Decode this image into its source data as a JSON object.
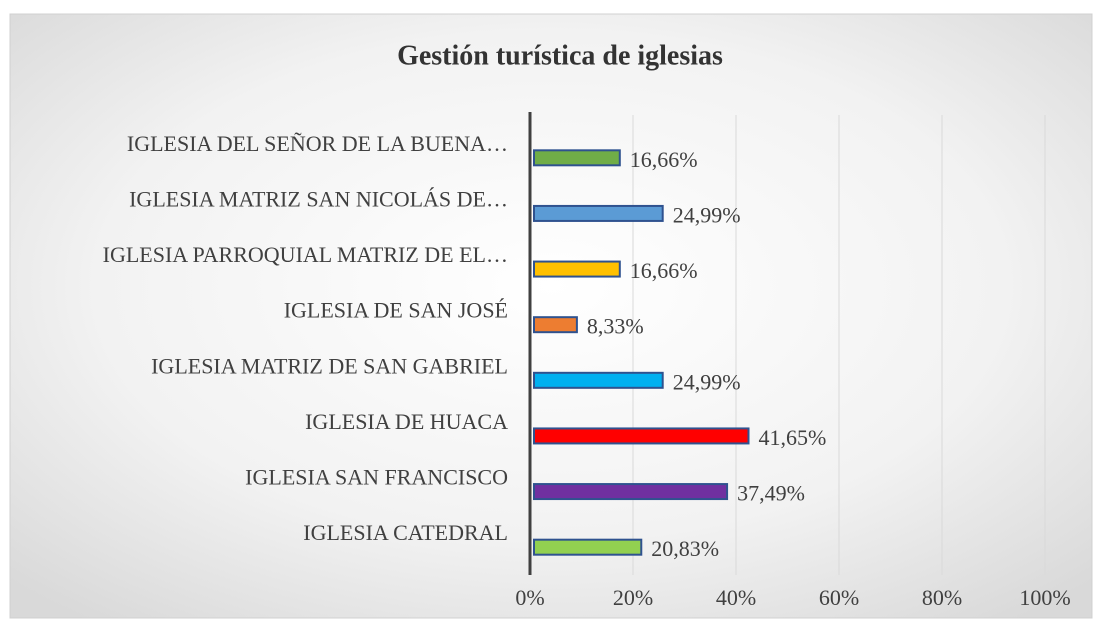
{
  "chart_data": {
    "type": "barh",
    "title": "Gestión turística de iglesias",
    "categories": [
      "IGLESIA DEL SEÑOR DE LA BUENA…",
      "IGLESIA MATRIZ SAN NICOLÁS DE…",
      "IGLESIA PARROQUIAL MATRIZ DE EL…",
      "IGLESIA DE SAN JOSÉ",
      "IGLESIA MATRIZ DE SAN GABRIEL",
      "IGLESIA DE HUACA",
      "IGLESIA SAN FRANCISCO",
      "IGLESIA CATEDRAL"
    ],
    "values": [
      16.66,
      24.99,
      16.66,
      8.33,
      24.99,
      41.65,
      37.49,
      20.83
    ],
    "value_labels": [
      "16,66%",
      "24,99%",
      "16,66%",
      "8,33%",
      "24,99%",
      "41,65%",
      "37,49%",
      "20,83%"
    ],
    "colors": [
      "#70ad47",
      "#5b9bd5",
      "#ffc000",
      "#ed7d31",
      "#00b0f0",
      "#ff0000",
      "#7030a0",
      "#92d050"
    ],
    "xlim": [
      0,
      100
    ],
    "xticks": [
      {
        "value": 0,
        "label": "0%"
      },
      {
        "value": 20,
        "label": "20%"
      },
      {
        "value": 40,
        "label": "40%"
      },
      {
        "value": 60,
        "label": "60%"
      },
      {
        "value": 80,
        "label": "80%"
      },
      {
        "value": 100,
        "label": "100%"
      }
    ],
    "grid": true
  }
}
